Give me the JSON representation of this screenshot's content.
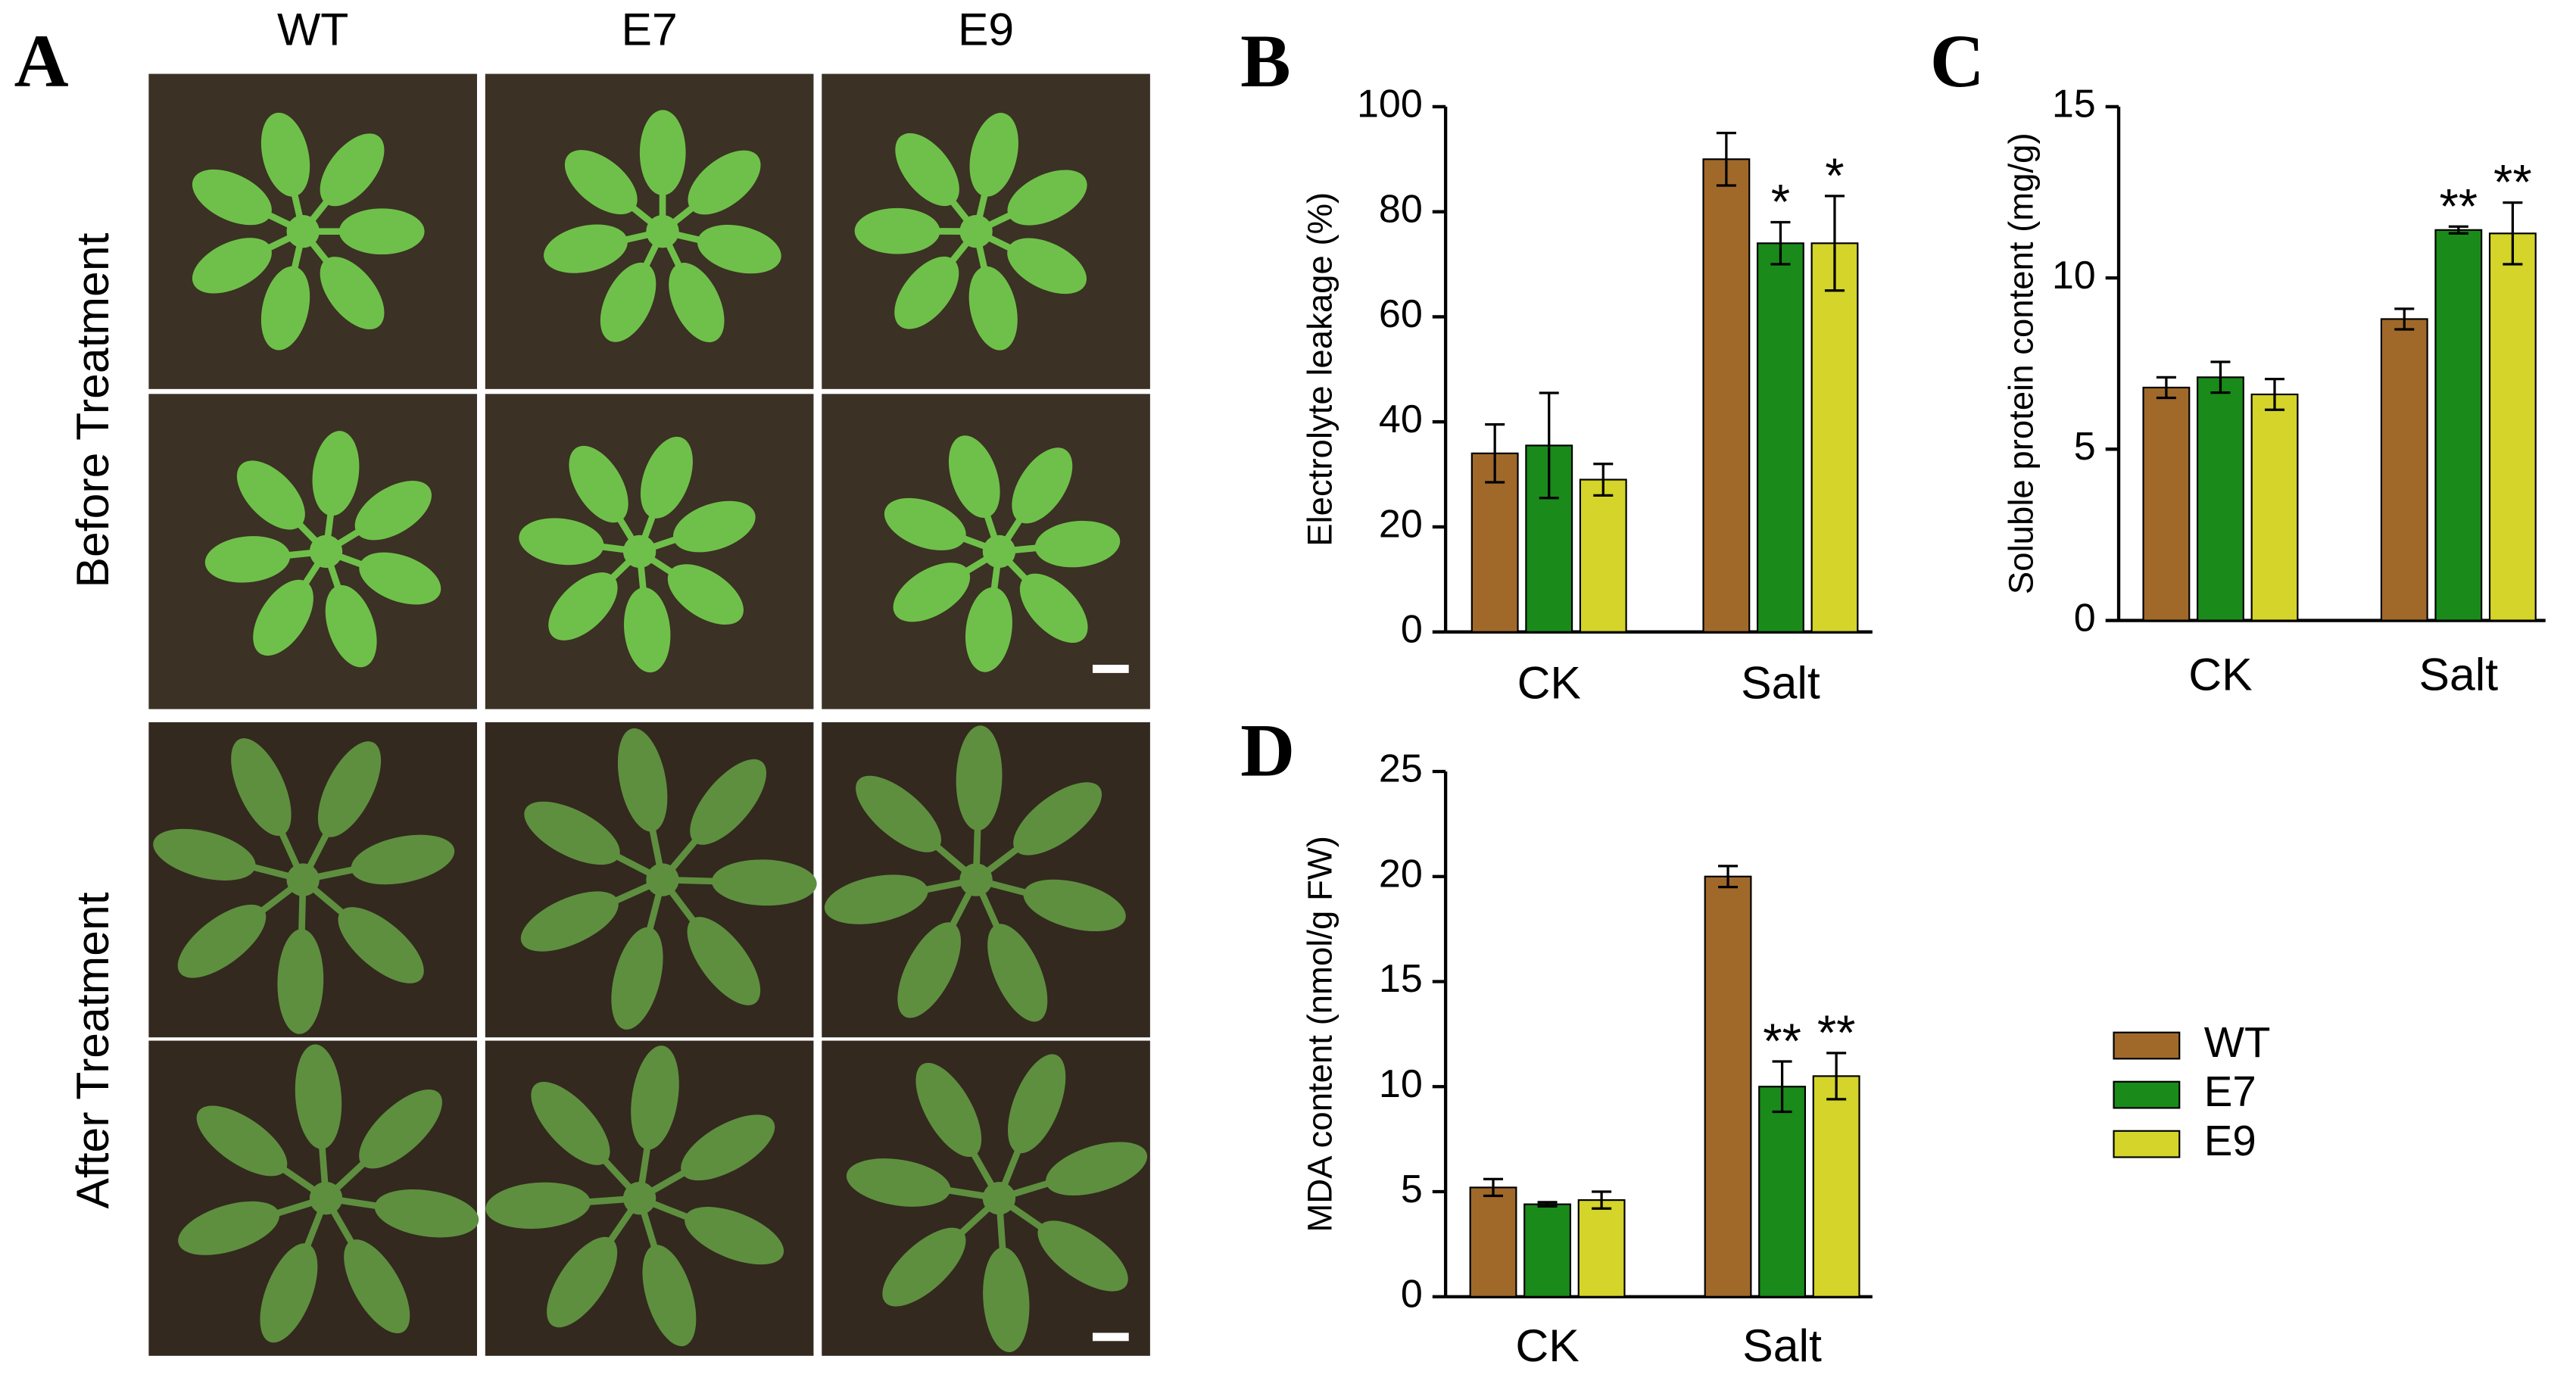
{
  "panel_a": {
    "label": "A",
    "columns": [
      "WT",
      "E7",
      "E9"
    ],
    "rows": [
      "Before Treatment",
      "After Treatment"
    ]
  },
  "chart_data": [
    {
      "type": "bar",
      "label": "B",
      "ylabel": "Electrolyte leakage (%)",
      "categories": [
        "CK",
        "Salt"
      ],
      "series": [
        {
          "name": "WT",
          "color": "#a0692a",
          "values": [
            34,
            90
          ],
          "errors": [
            5.5,
            5
          ],
          "annotations": [
            null,
            null
          ]
        },
        {
          "name": "E7",
          "color": "#1a8a1a",
          "values": [
            35.5,
            74
          ],
          "errors": [
            10,
            4
          ],
          "annotations": [
            null,
            "*"
          ]
        },
        {
          "name": "E9",
          "color": "#d4d42a",
          "values": [
            29,
            74
          ],
          "errors": [
            3,
            9
          ],
          "annotations": [
            null,
            "*"
          ]
        }
      ],
      "ylim": [
        0,
        100
      ],
      "yticks": [
        0,
        20,
        40,
        60,
        80,
        100
      ]
    },
    {
      "type": "bar",
      "label": "C",
      "ylabel": "Soluble protein content (mg/g)",
      "categories": [
        "CK",
        "Salt"
      ],
      "series": [
        {
          "name": "WT",
          "color": "#a0692a",
          "values": [
            6.8,
            8.8
          ],
          "errors": [
            0.3,
            0.3
          ],
          "annotations": [
            null,
            null
          ]
        },
        {
          "name": "E7",
          "color": "#1a8a1a",
          "values": [
            7.1,
            11.4
          ],
          "errors": [
            0.45,
            0.1
          ],
          "annotations": [
            null,
            "**"
          ]
        },
        {
          "name": "E9",
          "color": "#d4d42a",
          "values": [
            6.6,
            11.3
          ],
          "errors": [
            0.45,
            0.9
          ],
          "annotations": [
            null,
            "**"
          ]
        }
      ],
      "ylim": [
        0,
        15
      ],
      "yticks": [
        0,
        5,
        10,
        15
      ]
    },
    {
      "type": "bar",
      "label": "D",
      "ylabel": "MDA content (nmol/g FW)",
      "categories": [
        "CK",
        "Salt"
      ],
      "series": [
        {
          "name": "WT",
          "color": "#a0692a",
          "values": [
            5.2,
            20
          ],
          "errors": [
            0.4,
            0.5
          ],
          "annotations": [
            null,
            null
          ]
        },
        {
          "name": "E7",
          "color": "#1a8a1a",
          "values": [
            4.4,
            10
          ],
          "errors": [
            0.1,
            1.2
          ],
          "annotations": [
            null,
            "**"
          ]
        },
        {
          "name": "E9",
          "color": "#d4d42a",
          "values": [
            4.6,
            10.5
          ],
          "errors": [
            0.4,
            1.1
          ],
          "annotations": [
            null,
            "**"
          ]
        }
      ],
      "ylim": [
        0,
        25
      ],
      "yticks": [
        0,
        5,
        10,
        15,
        20,
        25
      ],
      "legend": "right"
    }
  ]
}
